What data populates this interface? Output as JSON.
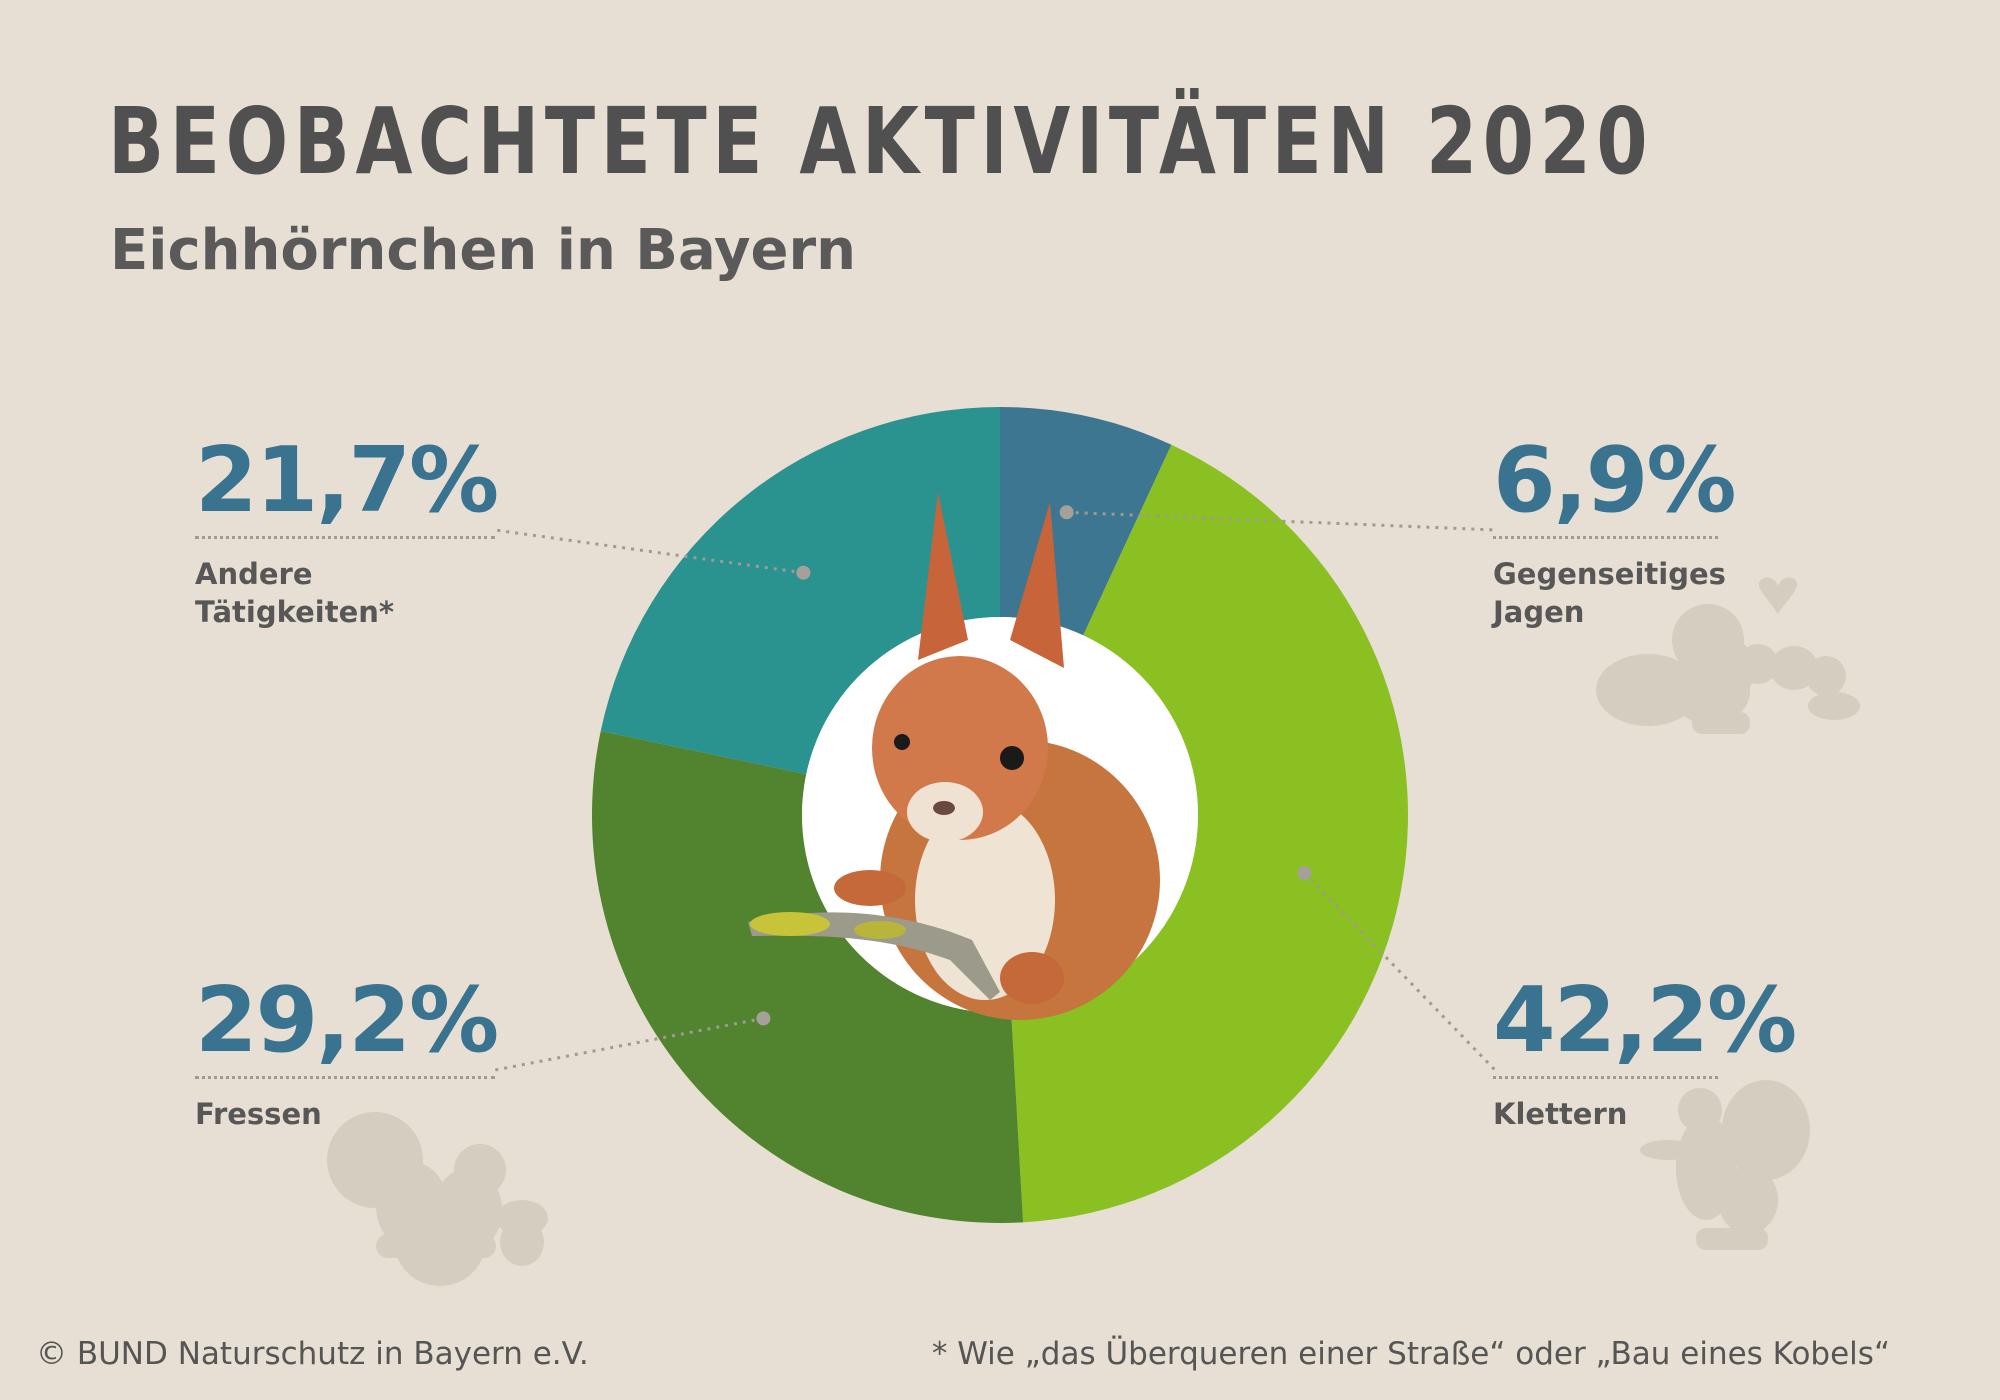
{
  "header": {
    "title": "BEOBACHTETE AKTIVITÄTEN 2020",
    "subtitle": "Eichhörnchen in Bayern"
  },
  "chart_data": {
    "type": "pie",
    "variant": "donut",
    "title": "BEOBACHTETE AKTIVITÄTEN 2020",
    "subtitle": "Eichhörnchen in Bayern",
    "slices": [
      {
        "label": "Gegenseitiges Jagen",
        "label_lines": [
          "Gegenseitiges",
          "Jagen"
        ],
        "value": 6.9,
        "value_label": "6,9%",
        "color": "#3c7690"
      },
      {
        "label": "Klettern",
        "label_lines": [
          "Klettern"
        ],
        "value": 42.2,
        "value_label": "42,2%",
        "color": "#8ac021"
      },
      {
        "label": "Fressen",
        "label_lines": [
          "Fressen"
        ],
        "value": 29.2,
        "value_label": "29,2%",
        "color": "#52832f"
      },
      {
        "label": "Andere Tätigkeiten*",
        "label_lines": [
          "Andere",
          "Tätigkeiten*"
        ],
        "value": 21.7,
        "value_label": "21,7%",
        "color": "#2a928f"
      }
    ],
    "start_position": "top, clockwise",
    "center_image": "squirrel-photo"
  },
  "colors": {
    "background": "#e7dfd3",
    "value_text": "#3a7390",
    "label_text": "#575757",
    "silhouette": "#d6cdc1"
  },
  "icons": [
    "squirrels-heart-silhouette",
    "squirrel-acorn-silhouette",
    "squirrel-standing-silhouette",
    "squirrel-photo"
  ],
  "footer": {
    "copyright": "© BUND Naturschutz in Bayern e.V.",
    "footnote": "* Wie „das Überqueren einer Straße“ oder „Bau eines Kobels“"
  }
}
